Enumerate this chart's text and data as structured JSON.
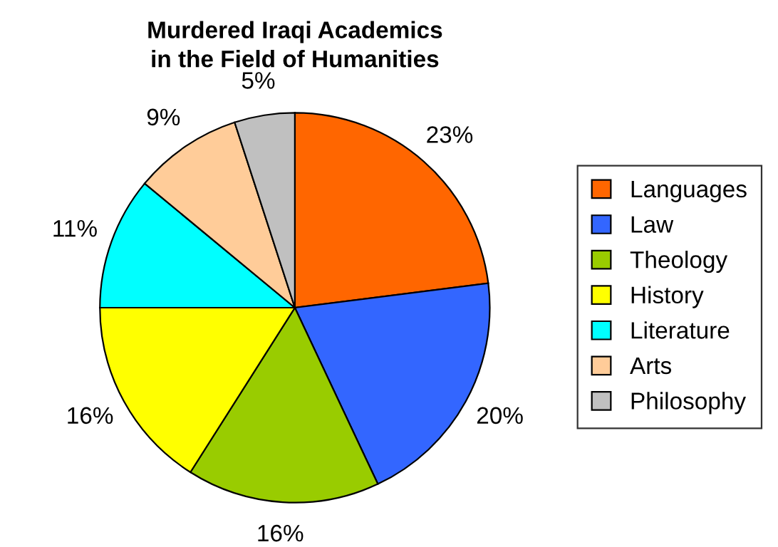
{
  "chart_data": {
    "type": "pie",
    "title": "Murdered Iraqi Academics\nin the Field of Humanities",
    "categories": [
      "Languages",
      "Law",
      "Theology",
      "History",
      "Literature",
      "Arts",
      "Philosophy"
    ],
    "values": [
      23,
      20,
      16,
      16,
      11,
      9,
      5
    ],
    "colors": [
      "#ff6600",
      "#3366ff",
      "#99cc00",
      "#ffff00",
      "#00ffff",
      "#ffcc99",
      "#c0c0c0"
    ],
    "value_labels": [
      "23%",
      "20%",
      "16%",
      "16%",
      "11%",
      "9%",
      "5%"
    ],
    "legend": "right"
  }
}
